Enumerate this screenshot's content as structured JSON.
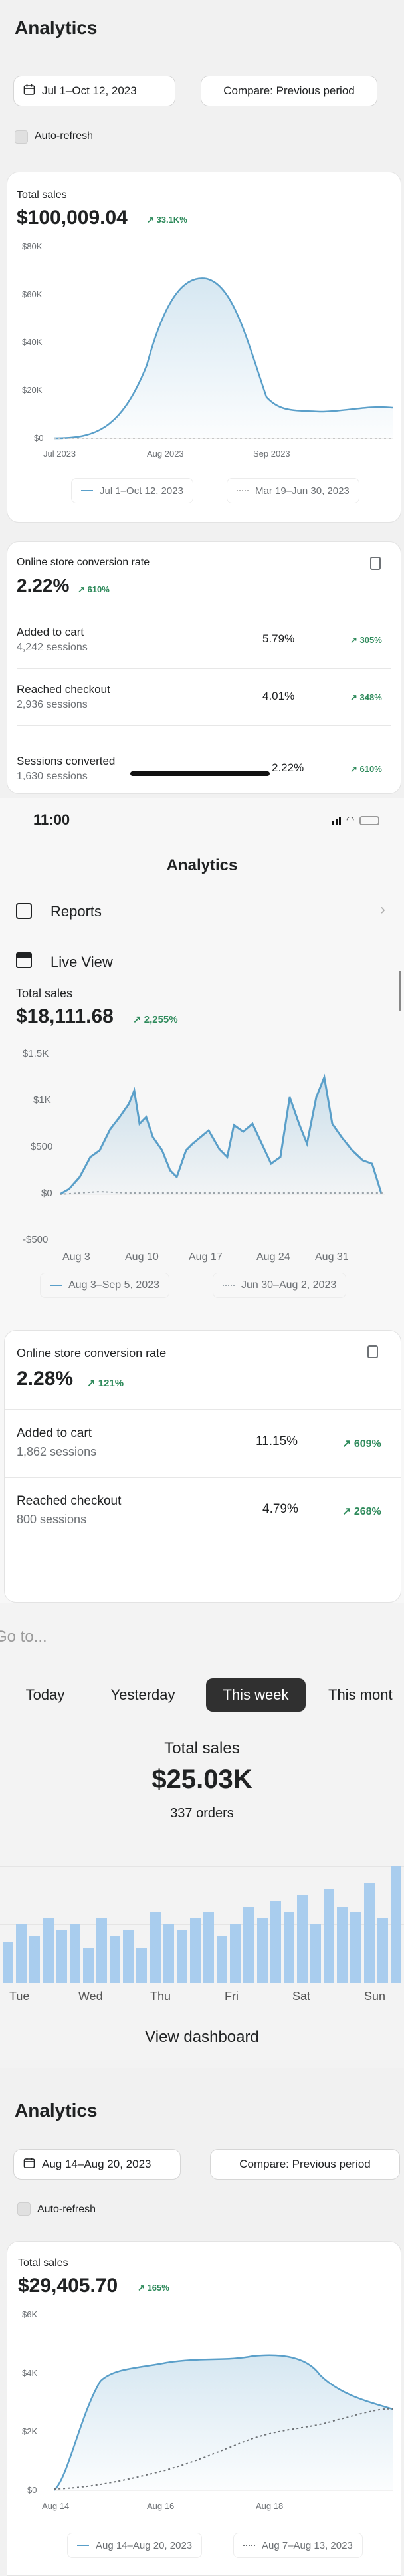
{
  "s1": {
    "title": "Analytics",
    "date_range": "Jul 1–Oct 12, 2023",
    "compare": "Compare: Previous period",
    "auto_refresh": "Auto-refresh",
    "total_sales": {
      "label": "Total sales",
      "value": "$100,009.04",
      "change": "↗ 33.1K%",
      "y_ticks": [
        "$80K",
        "$60K",
        "$40K",
        "$20K",
        "$0"
      ],
      "x_ticks": [
        "Jul 2023",
        "Aug 2023",
        "Sep 2023"
      ],
      "legend": [
        "Jul 1–Oct 12, 2023",
        "Mar 19–Jun 30, 2023"
      ]
    },
    "conversion": {
      "label": "Online store conversion rate",
      "value": "2.22%",
      "change": "↗ 610%",
      "rows": [
        {
          "label": "Added to cart",
          "sub": "4,242 sessions",
          "value": "5.79%",
          "change": "↗ 305%"
        },
        {
          "label": "Reached checkout",
          "sub": "2,936 sessions",
          "value": "4.01%",
          "change": "↗ 348%"
        },
        {
          "label": "Sessions converted",
          "sub": "1,630 sessions",
          "value": "2.22%",
          "change": "↗ 610%"
        }
      ]
    }
  },
  "s2": {
    "time": "11:00",
    "title": "Analytics",
    "reports": "Reports",
    "live_view": "Live View",
    "total_sales": {
      "label": "Total sales",
      "value": "$18,111.68",
      "change": "↗ 2,255%",
      "y_ticks": [
        "$1.5K",
        "$1K",
        "$500",
        "$0",
        "-$500"
      ],
      "x_ticks": [
        "Aug 3",
        "Aug 10",
        "Aug 17",
        "Aug 24",
        "Aug 31"
      ],
      "legend": [
        "Aug 3–Sep 5, 2023",
        "Jun 30–Aug 2, 2023"
      ]
    },
    "conversion": {
      "label": "Online store conversion rate",
      "value": "2.28%",
      "change": "↗ 121%",
      "rows": [
        {
          "label": "Added to cart",
          "sub": "1,862 sessions",
          "value": "11.15%",
          "change": "↗ 609%"
        },
        {
          "label": "Reached checkout",
          "sub": "800 sessions",
          "value": "4.79%",
          "change": "↗ 268%"
        }
      ]
    }
  },
  "s3": {
    "goto": "Go to...",
    "tabs": [
      "Today",
      "Yesterday",
      "This week",
      "This mont"
    ],
    "label": "Total sales",
    "value": "$25.03K",
    "orders": "337 orders",
    "days": [
      "Tue",
      "Wed",
      "Thu",
      "Fri",
      "Sat",
      "Sun"
    ],
    "view_dashboard": "View dashboard"
  },
  "s4": {
    "title": "Analytics",
    "date_range": "Aug 14–Aug 20, 2023",
    "compare": "Compare: Previous period",
    "auto_refresh": "Auto-refresh",
    "label": "Total sales",
    "value": "$29,405.70",
    "change": "↗ 165%",
    "y_ticks": [
      "$6K",
      "$4K",
      "$2K",
      "$0"
    ],
    "x_ticks": [
      "Aug 14",
      "Aug 16",
      "Aug 18"
    ],
    "legend": [
      "Aug 14–Aug 20, 2023",
      "Aug 7–Aug 13, 2023"
    ]
  },
  "colors": {
    "accent": "#5a9fc9",
    "bar": "#a9cdee",
    "positive": "#2e8a5b",
    "active_tab": "#303030"
  }
}
